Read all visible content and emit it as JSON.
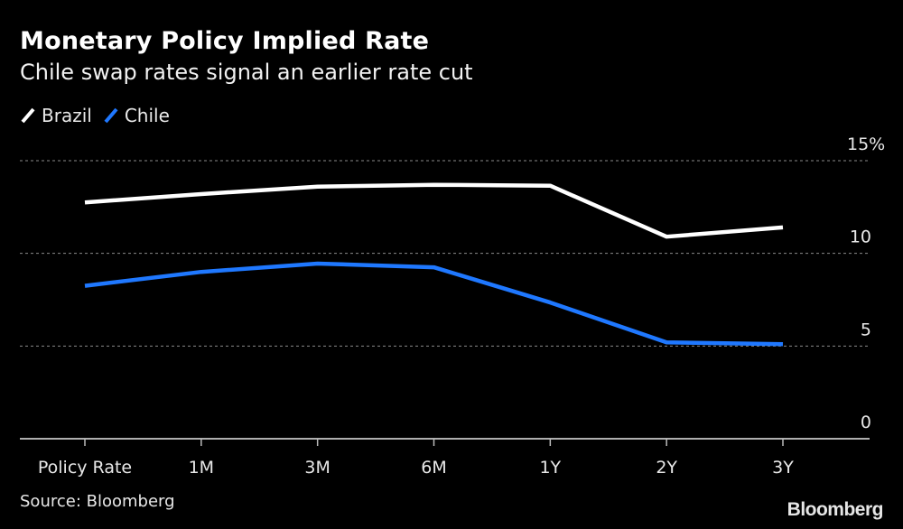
{
  "header": {
    "title": "Monetary Policy Implied Rate",
    "subtitle": "Chile swap rates signal an earlier rate cut"
  },
  "footer": {
    "source": "Source: Bloomberg",
    "brand": "Bloomberg"
  },
  "chart_data": {
    "type": "line",
    "title": "Monetary Policy Implied Rate",
    "subtitle": "Chile swap rates signal an earlier rate cut",
    "xlabel": "",
    "ylabel": "",
    "categories": [
      "Policy Rate",
      "1M",
      "3M",
      "6M",
      "1Y",
      "2Y",
      "3Y"
    ],
    "series": [
      {
        "name": "Brazil",
        "color": "#ffffff",
        "values": [
          12.75,
          13.2,
          13.6,
          13.7,
          13.65,
          10.9,
          11.4
        ]
      },
      {
        "name": "Chile",
        "color": "#1f78ff",
        "values": [
          8.25,
          9.0,
          9.45,
          9.25,
          7.35,
          5.2,
          5.1
        ]
      }
    ],
    "ylim": [
      0,
      15
    ],
    "yticks": [
      {
        "value": 15,
        "label": "15%"
      },
      {
        "value": 10,
        "label": "10"
      },
      {
        "value": 5,
        "label": "5"
      },
      {
        "value": 0,
        "label": "0"
      }
    ],
    "grid": true,
    "y_axis_side": "right",
    "legend_position": "top-left"
  }
}
